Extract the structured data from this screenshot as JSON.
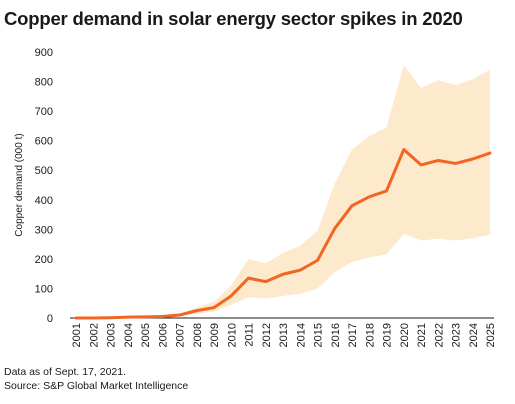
{
  "chart_data": {
    "type": "area",
    "title": "Copper demand in solar energy sector spikes in 2020",
    "ylabel": "Copper demand (000 t)",
    "xlabel": "",
    "ylim": [
      0,
      900
    ],
    "yticks": [
      0,
      100,
      200,
      300,
      400,
      500,
      600,
      700,
      800,
      900
    ],
    "grid": false,
    "x": [
      "2001",
      "2002",
      "2003",
      "2004",
      "2005",
      "2006",
      "2007",
      "2008",
      "2009",
      "2010",
      "2011",
      "2012",
      "2013",
      "2014",
      "2015",
      "2016",
      "2017",
      "2018",
      "2019",
      "2020",
      "2021",
      "2022",
      "2023",
      "2024",
      "2025"
    ],
    "series": [
      {
        "values": [
          0,
          0,
          1,
          3,
          4,
          5,
          10,
          25,
          35,
          75,
          135,
          123,
          148,
          162,
          195,
          303,
          380,
          410,
          430,
          570,
          518,
          533,
          523,
          538,
          558
        ],
        "color": "#f26522"
      }
    ],
    "range_band": {
      "upper": [
        1,
        1,
        2,
        5,
        6,
        8,
        15,
        35,
        55,
        110,
        200,
        185,
        220,
        245,
        295,
        455,
        570,
        615,
        645,
        855,
        778,
        805,
        788,
        808,
        840
      ],
      "lower": [
        0,
        0,
        0,
        1,
        2,
        3,
        6,
        15,
        22,
        45,
        70,
        65,
        75,
        82,
        100,
        155,
        190,
        205,
        215,
        285,
        262,
        268,
        262,
        270,
        282
      ],
      "color": "#fde9cc"
    }
  },
  "footer": {
    "note": "Data as of Sept. 17, 2021.",
    "source": "Source: S&P Global Market Intelligence"
  }
}
